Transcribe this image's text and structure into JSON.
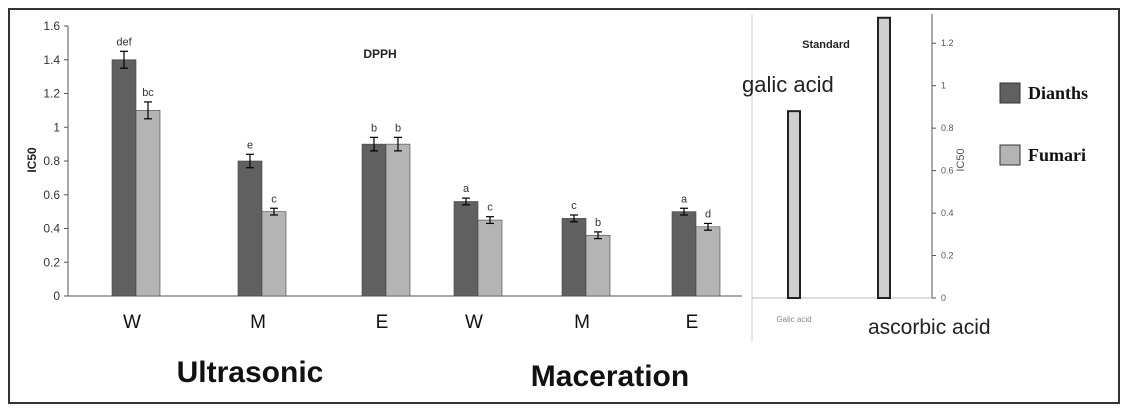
{
  "chart_data": [
    {
      "type": "bar",
      "title": "DPPH",
      "ylabel": "IC50",
      "ylim": [
        0,
        1.6
      ],
      "yticks": [
        "0",
        "0.2",
        "0.4",
        "0.6",
        "0.8",
        "1",
        "1.2",
        "1.4",
        "1.6"
      ],
      "categories": [
        "W",
        "M",
        "E",
        "W",
        "M",
        "E"
      ],
      "groups": [
        {
          "label": "Ultrasonic",
          "categories": [
            "W",
            "M",
            "E"
          ]
        },
        {
          "label": "Maceration",
          "categories": [
            "W",
            "M",
            "E"
          ]
        }
      ],
      "series": [
        {
          "name": "Dianths",
          "color": "#606060",
          "values": [
            1.4,
            0.8,
            0.9,
            0.56,
            0.46,
            0.5
          ],
          "errors": [
            0.05,
            0.04,
            0.04,
            0.02,
            0.02,
            0.02
          ],
          "labels": [
            "def",
            "e",
            "b",
            "a",
            "c",
            "a"
          ]
        },
        {
          "name": "Fumari",
          "color": "#b4b4b4",
          "values": [
            1.1,
            0.5,
            0.9,
            0.45,
            0.36,
            0.41
          ],
          "errors": [
            0.05,
            0.02,
            0.04,
            0.02,
            0.02,
            0.02
          ],
          "labels": [
            "bc",
            "c",
            "b",
            "c",
            "b",
            "d"
          ]
        }
      ],
      "grid": false
    },
    {
      "type": "bar",
      "title": "Standard",
      "ylabel": "IC50",
      "ylim": [
        0,
        1.3
      ],
      "yticks": [
        "0",
        "0.2",
        "0.4",
        "0.6",
        "0.8",
        "1",
        "1.2"
      ],
      "categories": [
        "Galic acid",
        "ascorbic acid"
      ],
      "values": [
        0.88,
        1.32
      ],
      "annotations": [
        "galic acid",
        "ascorbic acid"
      ],
      "color": "#cfcfcf"
    }
  ],
  "legend": [
    {
      "label": "Dianths",
      "color": "#606060"
    },
    {
      "label": "Fumari",
      "color": "#b4b4b4"
    }
  ]
}
